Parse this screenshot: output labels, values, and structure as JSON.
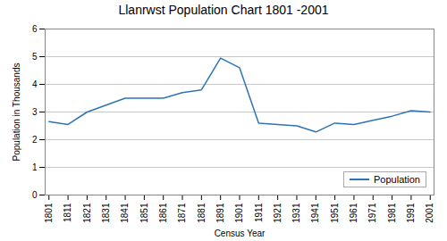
{
  "chart_data": {
    "type": "line",
    "title": "Llanrwst Population Chart 1801 -2001",
    "xlabel": "Census Year",
    "ylabel": "Population in Thousands",
    "x": [
      1801,
      1811,
      1821,
      1831,
      1841,
      1851,
      1861,
      1871,
      1881,
      1891,
      1901,
      1911,
      1921,
      1931,
      1941,
      1951,
      1961,
      1971,
      1981,
      1991,
      2001
    ],
    "series": [
      {
        "name": "Population",
        "color": "#2e74b5",
        "values": [
          2.65,
          2.55,
          3.0,
          3.25,
          3.5,
          3.5,
          3.5,
          3.7,
          3.8,
          4.95,
          4.6,
          2.6,
          2.55,
          2.5,
          2.28,
          2.6,
          2.55,
          2.7,
          2.85,
          3.05,
          3.0
        ]
      }
    ],
    "xlim": [
      1799,
      2003
    ],
    "xticks": [
      1801,
      1811,
      1821,
      1831,
      1841,
      1851,
      1861,
      1871,
      1881,
      1891,
      1901,
      1911,
      1921,
      1931,
      1941,
      1951,
      1961,
      1971,
      1981,
      1991,
      2001
    ],
    "ylim": [
      0,
      6
    ],
    "yticks": [
      0,
      1,
      2,
      3,
      4,
      5,
      6
    ],
    "grid": "y",
    "legend": "lower right"
  }
}
